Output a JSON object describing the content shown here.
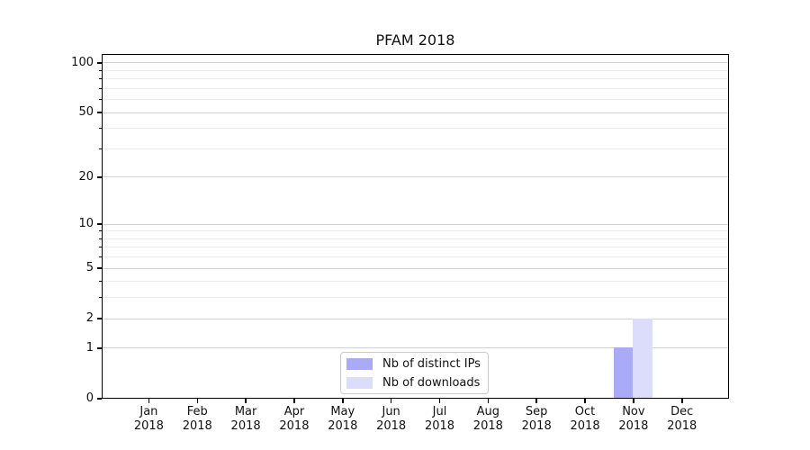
{
  "chart_data": {
    "type": "bar",
    "title": "PFAM 2018",
    "categories": [
      "Jan",
      "Feb",
      "Mar",
      "Apr",
      "May",
      "Jun",
      "Jul",
      "Aug",
      "Sep",
      "Oct",
      "Nov",
      "Dec"
    ],
    "category_year": "2018",
    "series": [
      {
        "name": "Nb of distinct IPs",
        "color": "#aaabf7",
        "values": [
          0,
          0,
          0,
          0,
          0,
          0,
          0,
          0,
          0,
          0,
          1,
          0
        ]
      },
      {
        "name": "Nb of downloads",
        "color": "#dcddfa",
        "values": [
          0,
          0,
          0,
          0,
          0,
          0,
          0,
          0,
          0,
          0,
          2,
          0
        ]
      }
    ],
    "xlabel": "",
    "ylabel": "",
    "y_scale": "log1p",
    "ylim": [
      0,
      113
    ],
    "yticks": [
      0,
      1,
      2,
      5,
      10,
      20,
      50,
      100
    ],
    "yticks_minor": [
      3,
      4,
      6,
      7,
      8,
      9,
      30,
      40,
      60,
      70,
      80,
      90
    ],
    "grid": "horizontal",
    "legend_position": "lower center"
  },
  "colors": {
    "axis": "#000000",
    "grid_major": "#d2d2d2",
    "grid_minor": "#ededed",
    "legend_border": "#cccccc",
    "text": "#111111"
  }
}
